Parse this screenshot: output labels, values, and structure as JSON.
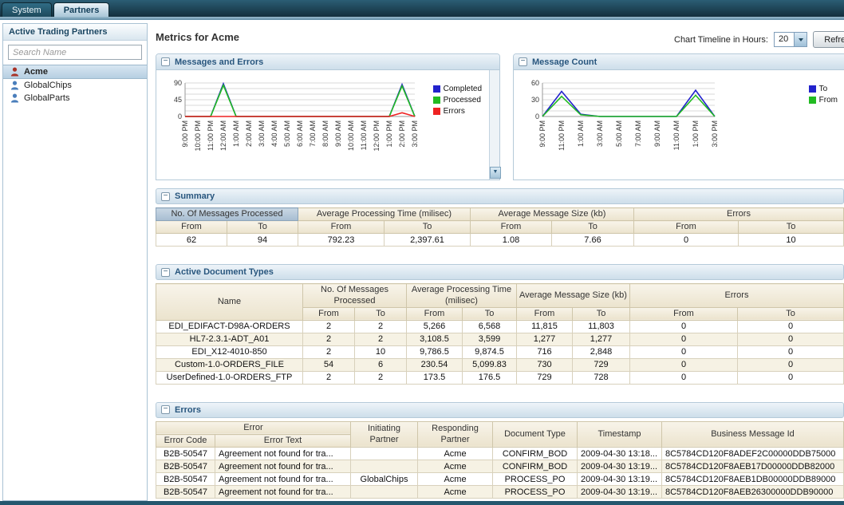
{
  "tab_bar": {
    "tabs": [
      {
        "label": "System",
        "active": false
      },
      {
        "label": "Partners",
        "active": true
      }
    ]
  },
  "sidebar": {
    "title": "Active Trading Partners",
    "search_placeholder": "Search Name",
    "partners": [
      {
        "name": "Acme",
        "selected": true,
        "icon_color": "#a93226"
      },
      {
        "name": "GlobalChips",
        "selected": false,
        "icon_color": "#4a7ebb"
      },
      {
        "name": "GlobalParts",
        "selected": false,
        "icon_color": "#4a7ebb"
      }
    ]
  },
  "toolbar": {
    "page_title": "Metrics for Acme",
    "timeline_label": "Chart Timeline in Hours:",
    "timeline_value": "20",
    "refresh_label": "Refresh"
  },
  "chart_data": [
    {
      "type": "line",
      "title": "Messages and Errors",
      "xlabel": "",
      "ylabel": "",
      "ylim": [
        0,
        90
      ],
      "yticks": [
        0,
        45,
        90
      ],
      "grid": true,
      "legend_position": "right",
      "x_labels": [
        "9:00 PM",
        "10:00 PM",
        "11:00 PM",
        "12:00 AM",
        "1:00 AM",
        "2:00 AM",
        "3:00 AM",
        "4:00 AM",
        "5:00 AM",
        "6:00 AM",
        "7:00 AM",
        "8:00 AM",
        "9:00 AM",
        "10:00 AM",
        "11:00 AM",
        "12:00 PM",
        "1:00 PM",
        "2:00 PM",
        "3:00 PM"
      ],
      "series": [
        {
          "name": "Completed",
          "color": "#2222cc",
          "values": [
            0,
            0,
            0,
            88,
            0,
            0,
            0,
            0,
            0,
            0,
            0,
            0,
            0,
            0,
            0,
            0,
            0,
            86,
            0
          ]
        },
        {
          "name": "Processed",
          "color": "#22bb22",
          "values": [
            0,
            0,
            0,
            84,
            0,
            0,
            0,
            0,
            0,
            0,
            0,
            0,
            0,
            0,
            0,
            0,
            0,
            82,
            0
          ]
        },
        {
          "name": "Errors",
          "color": "#ee2222",
          "values": [
            0,
            0,
            0,
            0,
            0,
            0,
            0,
            0,
            0,
            0,
            0,
            0,
            0,
            0,
            0,
            0,
            0,
            10,
            0
          ]
        }
      ]
    },
    {
      "type": "line",
      "title": "Message Count",
      "xlabel": "",
      "ylabel": "",
      "ylim": [
        0,
        60
      ],
      "yticks": [
        0,
        30,
        60
      ],
      "grid": true,
      "legend_position": "right",
      "x_labels": [
        "9:00 PM",
        "11:00 PM",
        "1:00 AM",
        "3:00 AM",
        "5:00 AM",
        "7:00 AM",
        "9:00 AM",
        "11:00 AM",
        "1:00 PM",
        "3:00 PM"
      ],
      "series": [
        {
          "name": "To",
          "color": "#2222cc",
          "values": [
            0,
            45,
            4,
            0,
            0,
            0,
            0,
            0,
            47,
            0
          ]
        },
        {
          "name": "From",
          "color": "#22bb22",
          "values": [
            0,
            36,
            3,
            0,
            0,
            0,
            0,
            0,
            38,
            0
          ]
        }
      ]
    }
  ],
  "summary": {
    "title": "Summary",
    "groups": [
      "No. Of Messages Processed",
      "Average Processing Time (milisec)",
      "Average Message Size (kb)",
      "Errors"
    ],
    "from_label": "From",
    "to_label": "To",
    "values": [
      "62",
      "94",
      "792.23",
      "2,397.61",
      "1.08",
      "7.66",
      "0",
      "10"
    ]
  },
  "doc_types": {
    "title": "Active Document Types",
    "name_header": "Name",
    "groups": [
      "No. Of Messages Processed",
      "Average Processing Time (milisec)",
      "Average Message Size (kb)",
      "Errors"
    ],
    "from_label": "From",
    "to_label": "To",
    "rows": [
      {
        "name": "EDI_EDIFACT-D98A-ORDERS",
        "values": [
          "2",
          "2",
          "5,266",
          "6,568",
          "11,815",
          "11,803",
          "0",
          "0"
        ]
      },
      {
        "name": "HL7-2.3.1-ADT_A01",
        "values": [
          "2",
          "2",
          "3,108.5",
          "3,599",
          "1,277",
          "1,277",
          "0",
          "0"
        ]
      },
      {
        "name": "EDI_X12-4010-850",
        "values": [
          "2",
          "10",
          "9,786.5",
          "9,874.5",
          "716",
          "2,848",
          "0",
          "0"
        ]
      },
      {
        "name": "Custom-1.0-ORDERS_FILE",
        "values": [
          "54",
          "6",
          "230.54",
          "5,099.83",
          "730",
          "729",
          "0",
          "0"
        ]
      },
      {
        "name": "UserDefined-1.0-ORDERS_FTP",
        "values": [
          "2",
          "2",
          "173.5",
          "176.5",
          "729",
          "728",
          "0",
          "0"
        ]
      }
    ]
  },
  "errors_panel": {
    "title": "Errors",
    "headers": {
      "error_group": "Error",
      "error_code": "Error Code",
      "error_text": "Error Text",
      "initiating": "Initiating Partner",
      "responding": "Responding Partner",
      "doc_type": "Document Type",
      "timestamp": "Timestamp",
      "message_id": "Business Message Id"
    },
    "rows": [
      {
        "code": "B2B-50547",
        "text": "Agreement not found for tra...",
        "initiating": "",
        "responding": "Acme",
        "doc_type": "CONFIRM_BOD",
        "timestamp": "2009-04-30 13:18...",
        "message_id": "8C5784CD120F8ADEF2C00000DDB75000"
      },
      {
        "code": "B2B-50547",
        "text": "Agreement not found for tra...",
        "initiating": "",
        "responding": "Acme",
        "doc_type": "CONFIRM_BOD",
        "timestamp": "2009-04-30 13:19...",
        "message_id": "8C5784CD120F8AEB17D00000DDB82000"
      },
      {
        "code": "B2B-50547",
        "text": "Agreement not found for tra...",
        "initiating": "GlobalChips",
        "responding": "Acme",
        "doc_type": "PROCESS_PO",
        "timestamp": "2009-04-30 13:19...",
        "message_id": "8C5784CD120F8AEB1DB00000DDB89000"
      },
      {
        "code": "B2B-50547",
        "text": "Agreement not found for tra...",
        "initiating": "",
        "responding": "Acme",
        "doc_type": "PROCESS_PO",
        "timestamp": "2009-04-30 13:19...",
        "message_id": "8C5784CD120F8AEB26300000DDB90000"
      }
    ]
  }
}
